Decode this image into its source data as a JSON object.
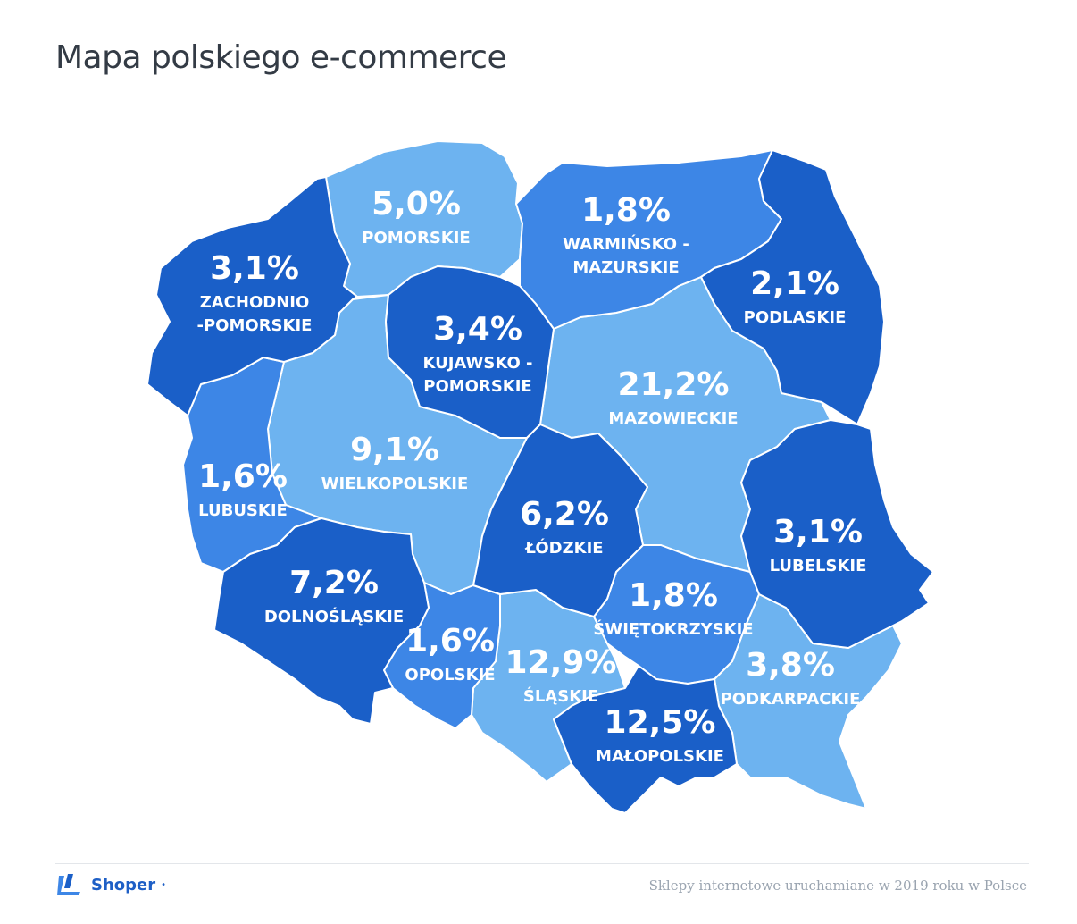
{
  "title": "Mapa polskiego e-commerce",
  "footer": {
    "brand": "Shoper",
    "brand_mark": "•",
    "note": "Sklepy internetowe uruchamiane w 2019 roku w Polsce"
  },
  "colors": {
    "dark": "#1a5fc8",
    "medium": "#3d86e6",
    "light": "#6db3f0"
  },
  "regions": [
    {
      "id": "pomorskie",
      "pct": "5,0%",
      "name": [
        "POMORSKIE"
      ],
      "shade": "light"
    },
    {
      "id": "warminsko",
      "pct": "1,8%",
      "name": [
        "WARMIŃSKO -",
        "MAZURSKIE"
      ],
      "shade": "medium"
    },
    {
      "id": "podlaskie",
      "pct": "2,1%",
      "name": [
        "PODLASKIE"
      ],
      "shade": "dark"
    },
    {
      "id": "zachodnio",
      "pct": "3,1%",
      "name": [
        "ZACHODNIO",
        "-POMORSKIE"
      ],
      "shade": "dark"
    },
    {
      "id": "kujawsko",
      "pct": "3,4%",
      "name": [
        "KUJAWSKO -",
        "POMORSKIE"
      ],
      "shade": "dark"
    },
    {
      "id": "mazowieckie",
      "pct": "21,2%",
      "name": [
        "MAZOWIECKIE"
      ],
      "shade": "light"
    },
    {
      "id": "wielkopolskie",
      "pct": "9,1%",
      "name": [
        "WIELKOPOLSKIE"
      ],
      "shade": "light"
    },
    {
      "id": "lubuskie",
      "pct": "1,6%",
      "name": [
        "LUBUSKIE"
      ],
      "shade": "medium"
    },
    {
      "id": "lodzkie",
      "pct": "6,2%",
      "name": [
        "ŁÓDZKIE"
      ],
      "shade": "dark"
    },
    {
      "id": "lubelskie",
      "pct": "3,1%",
      "name": [
        "LUBELSKIE"
      ],
      "shade": "dark"
    },
    {
      "id": "dolnoslaskie",
      "pct": "7,2%",
      "name": [
        "DOLNOŚLĄSKIE"
      ],
      "shade": "dark"
    },
    {
      "id": "swietokrzyskie",
      "pct": "1,8%",
      "name": [
        "ŚWIĘTOKRZYSKIE"
      ],
      "shade": "medium"
    },
    {
      "id": "opolskie",
      "pct": "1,6%",
      "name": [
        "OPOLSKIE"
      ],
      "shade": "medium"
    },
    {
      "id": "slaskie",
      "pct": "12,9%",
      "name": [
        "ŚLĄSKIE"
      ],
      "shade": "light"
    },
    {
      "id": "podkarpackie",
      "pct": "3,8%",
      "name": [
        "PODKARPACKIE"
      ],
      "shade": "light"
    },
    {
      "id": "malopolskie",
      "pct": "12,5%",
      "name": [
        "MAŁOPOLSKIE"
      ],
      "shade": "dark"
    }
  ]
}
